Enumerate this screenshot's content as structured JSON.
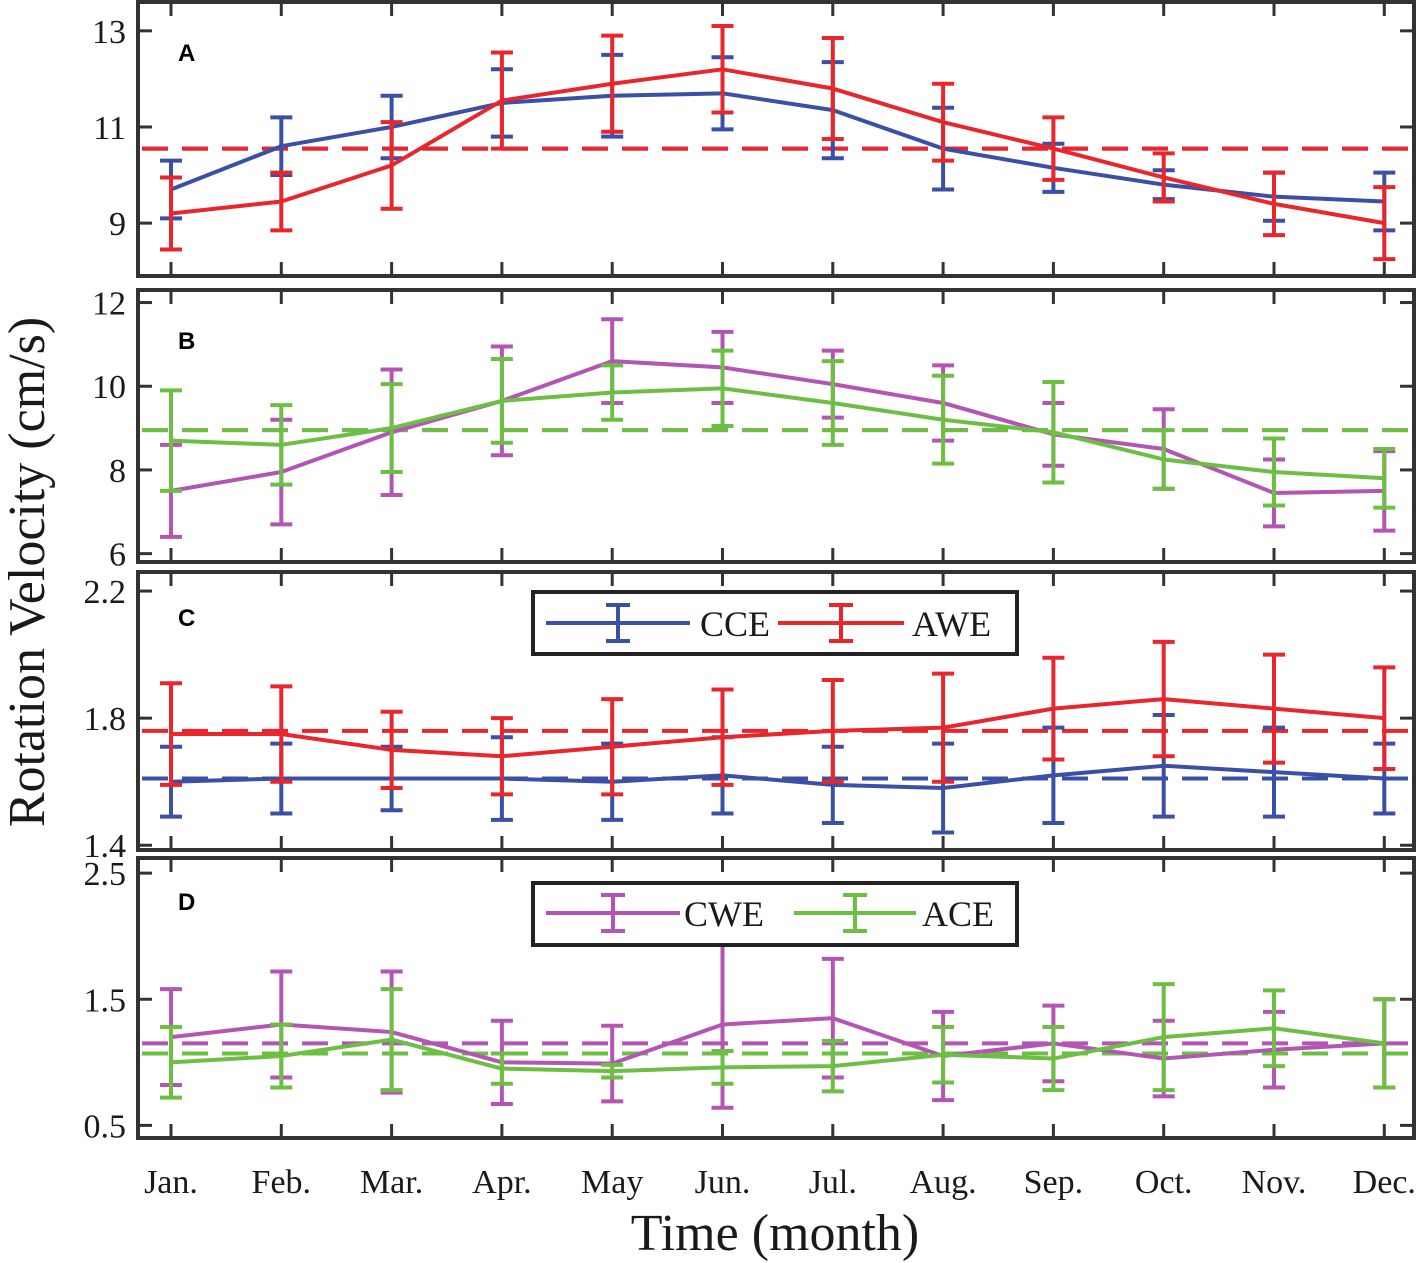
{
  "figure": {
    "ylabel": "Rotation Velocity (cm/s)",
    "xlabel": "Time (month)",
    "months": [
      "Jan.",
      "Feb.",
      "Mar.",
      "Apr.",
      "May",
      "Jun.",
      "Jul.",
      "Aug.",
      "Sep.",
      "Oct.",
      "Nov.",
      "Dec."
    ]
  },
  "chart_data": [
    {
      "type": "line",
      "panel": "A",
      "ylim": [
        7.9,
        13.6
      ],
      "yticks": [
        9,
        11,
        13
      ],
      "legend": null,
      "series": [
        {
          "name": "CCE",
          "color": "#3a4fa6",
          "values": [
            9.7,
            10.6,
            11.0,
            11.5,
            11.65,
            11.7,
            11.35,
            10.55,
            10.15,
            9.8,
            9.55,
            9.45
          ],
          "errors": [
            0.6,
            0.6,
            0.65,
            0.7,
            0.85,
            0.75,
            1.0,
            0.85,
            0.5,
            0.3,
            0.5,
            0.6
          ],
          "mean": 10.55
        },
        {
          "name": "AWE",
          "color": "#e8262b",
          "values": [
            9.2,
            9.45,
            10.2,
            11.55,
            11.9,
            12.2,
            11.8,
            11.1,
            10.55,
            9.95,
            9.4,
            9.0
          ],
          "errors": [
            0.75,
            0.6,
            0.9,
            1.0,
            1.0,
            0.9,
            1.05,
            0.8,
            0.65,
            0.5,
            0.65,
            0.75
          ],
          "mean": 10.55
        }
      ]
    },
    {
      "type": "line",
      "panel": "B",
      "ylim": [
        5.8,
        12.3
      ],
      "yticks": [
        6,
        8,
        10,
        12
      ],
      "legend": null,
      "series": [
        {
          "name": "CWE",
          "color": "#b455b6",
          "values": [
            7.5,
            7.95,
            8.9,
            9.65,
            10.6,
            10.45,
            10.05,
            9.6,
            8.85,
            8.5,
            7.45,
            7.5
          ],
          "errors": [
            1.1,
            1.25,
            1.5,
            1.3,
            1.0,
            0.85,
            0.8,
            0.9,
            0.75,
            0.95,
            0.8,
            0.95
          ],
          "mean": 8.95
        },
        {
          "name": "ACE",
          "color": "#6cbf43",
          "values": [
            8.7,
            8.6,
            9.0,
            9.65,
            9.85,
            9.95,
            9.6,
            9.2,
            8.9,
            8.25,
            7.95,
            7.8
          ],
          "errors": [
            1.2,
            0.95,
            1.05,
            1.0,
            0.65,
            0.9,
            1.0,
            1.05,
            1.2,
            0.7,
            0.8,
            0.7
          ],
          "mean": 8.95
        }
      ]
    },
    {
      "type": "line",
      "panel": "C",
      "ylim": [
        1.385,
        2.26
      ],
      "yticks": [
        1.4,
        1.8,
        2.2
      ],
      "legend": "top-center",
      "series": [
        {
          "name": "CCE",
          "color": "#3a4fa6",
          "values": [
            1.6,
            1.61,
            1.61,
            1.61,
            1.6,
            1.62,
            1.59,
            1.58,
            1.62,
            1.65,
            1.63,
            1.61
          ],
          "errors": [
            0.11,
            0.11,
            0.1,
            0.13,
            0.12,
            0.12,
            0.12,
            0.14,
            0.15,
            0.16,
            0.14,
            0.11
          ],
          "mean": 1.61
        },
        {
          "name": "AWE",
          "color": "#e8262b",
          "values": [
            1.75,
            1.75,
            1.7,
            1.68,
            1.71,
            1.74,
            1.76,
            1.77,
            1.83,
            1.86,
            1.83,
            1.8
          ],
          "errors": [
            0.16,
            0.15,
            0.12,
            0.12,
            0.15,
            0.15,
            0.16,
            0.17,
            0.16,
            0.18,
            0.17,
            0.16
          ],
          "mean": 1.76
        }
      ]
    },
    {
      "type": "line",
      "panel": "D",
      "ylim": [
        0.4,
        2.62
      ],
      "yticks": [
        0.5,
        1.5,
        2.5
      ],
      "legend": "top-center",
      "series": [
        {
          "name": "CWE",
          "color": "#b455b6",
          "values": [
            1.2,
            1.3,
            1.24,
            1.0,
            0.99,
            1.3,
            1.35,
            1.05,
            1.15,
            1.03,
            1.1,
            1.15
          ],
          "errors": [
            0.38,
            0.42,
            0.48,
            0.33,
            0.3,
            0.66,
            0.47,
            0.35,
            0.3,
            0.3,
            0.3,
            0.35
          ],
          "mean": 1.15
        },
        {
          "name": "ACE",
          "color": "#6cbf43",
          "values": [
            1.0,
            1.05,
            1.18,
            0.95,
            0.93,
            0.96,
            0.97,
            1.06,
            1.03,
            1.2,
            1.27,
            1.15
          ],
          "errors": [
            0.28,
            0.25,
            0.4,
            0.12,
            0.05,
            0.13,
            0.2,
            0.22,
            0.25,
            0.42,
            0.3,
            0.35
          ],
          "mean": 1.07
        }
      ]
    }
  ]
}
